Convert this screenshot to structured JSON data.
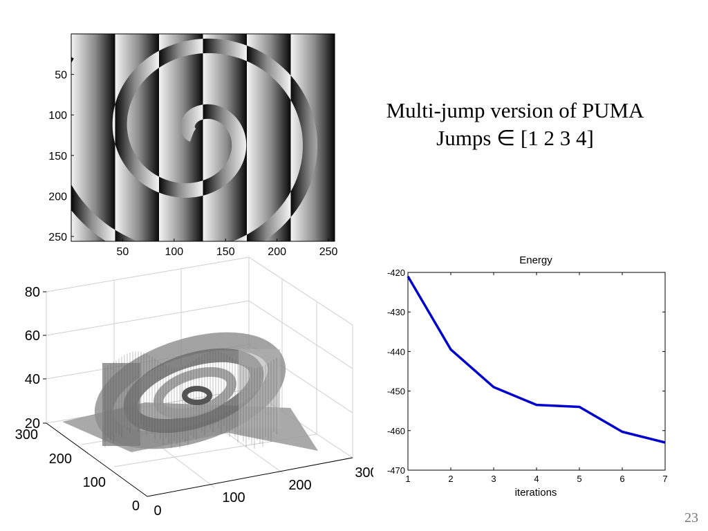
{
  "slide": {
    "title_line1": "Multi-jump version of PUMA",
    "title_line2": "Jumps ∈ [1 2 3 4]",
    "page_number": "23"
  },
  "chart_data": [
    {
      "type": "heatmap",
      "description_kind": "wrapped-phase image",
      "colormap": "gray",
      "xticks": [
        "50",
        "100",
        "150",
        "200",
        "250"
      ],
      "yticks": [
        "50",
        "100",
        "150",
        "200",
        "250"
      ],
      "xlim": [
        0,
        256
      ],
      "ylim": [
        0,
        256
      ]
    },
    {
      "type": "surface3d",
      "zticks": [
        "20",
        "40",
        "60",
        "80"
      ],
      "xticks": [
        "0",
        "100",
        "200",
        "300"
      ],
      "yticks": [
        "0",
        "100",
        "200",
        "300"
      ]
    },
    {
      "type": "line",
      "title": "Energy",
      "xlabel": "iterations",
      "ylabel": "",
      "x": [
        1,
        2,
        3,
        4,
        5,
        6,
        7
      ],
      "values": [
        -421,
        -439.5,
        -449,
        -453.5,
        -454,
        -460.3,
        -463
      ],
      "xticks": [
        "1",
        "2",
        "3",
        "4",
        "5",
        "6",
        "7"
      ],
      "yticks": [
        "-420",
        "-430",
        "-440",
        "-450",
        "-460",
        "-470"
      ],
      "xlim": [
        1,
        7
      ],
      "ylim": [
        -470,
        -420
      ],
      "color": "#0000cc",
      "grid": false
    }
  ]
}
